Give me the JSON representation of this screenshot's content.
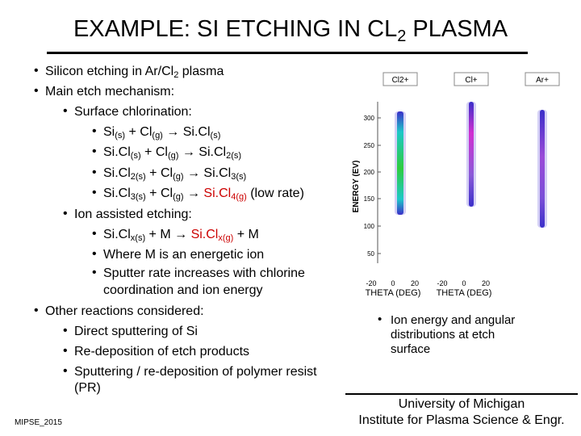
{
  "title": {
    "main": "EXAMPLE: SI ETCHING IN CL",
    "sub": "2",
    "tail": " PLASMA"
  },
  "bullet": "•",
  "lines": [
    {
      "parts": [
        [
          "Silicon etching in Ar/Cl",
          ""
        ],
        [
          "2",
          "sub"
        ],
        [
          " plasma",
          ""
        ]
      ]
    },
    {
      "parts": [
        [
          "Main etch mechanism:",
          ""
        ]
      ]
    },
    {
      "parts": [
        [
          "Surface chlorination:",
          ""
        ]
      ]
    },
    {
      "parts": [
        [
          "Si",
          ""
        ],
        [
          "(s)",
          "sub"
        ],
        [
          " + Cl",
          ""
        ],
        [
          "(g)",
          "sub"
        ],
        [
          " → Si.Cl",
          ""
        ],
        [
          "(s)",
          "sub"
        ]
      ]
    },
    {
      "parts": [
        [
          "Si.Cl",
          ""
        ],
        [
          "(s)",
          "sub"
        ],
        [
          " + Cl",
          ""
        ],
        [
          "(g)",
          "sub"
        ],
        [
          " → Si.Cl",
          ""
        ],
        [
          "2(s)",
          "sub"
        ]
      ]
    },
    {
      "parts": [
        [
          "Si.Cl",
          ""
        ],
        [
          "2(s)",
          "sub"
        ],
        [
          " + Cl",
          ""
        ],
        [
          "(g)",
          "sub"
        ],
        [
          " → Si.Cl",
          ""
        ],
        [
          "3(s)",
          "sub"
        ]
      ]
    },
    {
      "parts": [
        [
          "Si.Cl",
          ""
        ],
        [
          "3(s)",
          "sub"
        ],
        [
          " + Cl",
          ""
        ],
        [
          "(g)",
          "sub"
        ],
        [
          " → ",
          ""
        ],
        [
          "Si.Cl",
          "red"
        ],
        [
          "4(g)",
          "redsub"
        ],
        [
          " (low rate)",
          ""
        ]
      ]
    },
    {
      "parts": [
        [
          "Ion assisted etching:",
          ""
        ]
      ]
    },
    {
      "parts": [
        [
          "Si.Cl",
          ""
        ],
        [
          "x(s)",
          "sub"
        ],
        [
          " + M → ",
          ""
        ],
        [
          "Si.Cl",
          "red"
        ],
        [
          "x(g)",
          "redsub"
        ],
        [
          " + M",
          ""
        ]
      ]
    },
    {
      "parts": [
        [
          "Where M is an energetic ion",
          ""
        ]
      ]
    },
    {
      "parts": [
        [
          "Sputter rate increases with chlorine",
          ""
        ]
      ]
    },
    {
      "parts": [
        [
          "coordination and ion energy",
          ""
        ]
      ]
    },
    {
      "parts": [
        [
          "Other reactions considered:",
          ""
        ]
      ]
    },
    {
      "parts": [
        [
          "Direct sputtering of Si",
          ""
        ]
      ]
    },
    {
      "parts": [
        [
          "Re-deposition of etch products",
          ""
        ]
      ]
    },
    {
      "parts": [
        [
          "Sputtering / re-deposition of polymer resist",
          ""
        ]
      ]
    },
    {
      "parts": [
        [
          "(PR)",
          ""
        ]
      ]
    }
  ],
  "figure": {
    "panels": [
      "Cl2+",
      "Cl+",
      "Ar+"
    ],
    "ylabel": "ENERGY (EV)",
    "yticks": [
      "300",
      "250",
      "200",
      "150",
      "100",
      "50"
    ],
    "xticks": [
      "-20",
      "0",
      "20"
    ],
    "xlabel": "THETA (DEG)",
    "colors": {
      "low": "#3b2fc9",
      "mid": "#1ec8c8",
      "high": "#d12fd1",
      "core": "#2ecc40"
    }
  },
  "right_bullet": [
    "Ion energy and angular",
    "distributions at etch",
    "surface"
  ],
  "footer": {
    "left": "MIPSE_2015",
    "uni1": "University of Michigan",
    "uni2": "Institute for Plasma Science & Engr."
  }
}
